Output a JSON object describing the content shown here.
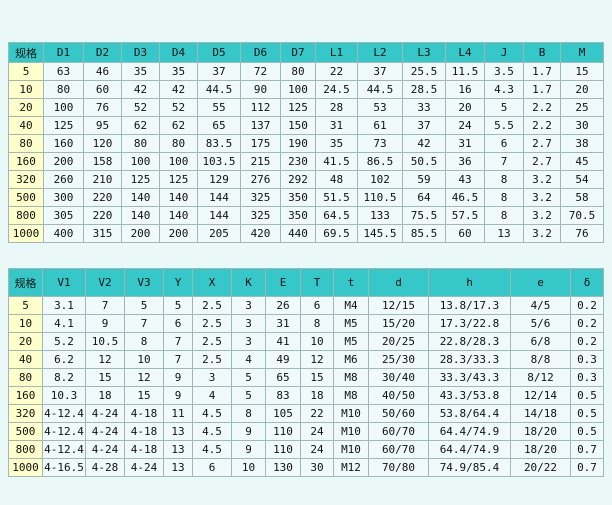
{
  "tables": [
    {
      "header": [
        "规格",
        "D1",
        "D2",
        "D3",
        "D4",
        "D5",
        "D6",
        "D7",
        "L1",
        "L2",
        "L3",
        "L4",
        "J",
        "B",
        "M"
      ],
      "rows": [
        [
          "5",
          "63",
          "46",
          "35",
          "35",
          "37",
          "72",
          "80",
          "22",
          "37",
          "25.5",
          "11.5",
          "3.5",
          "1.7",
          "15"
        ],
        [
          "10",
          "80",
          "60",
          "42",
          "42",
          "44.5",
          "90",
          "100",
          "24.5",
          "44.5",
          "28.5",
          "16",
          "4.3",
          "1.7",
          "20"
        ],
        [
          "20",
          "100",
          "76",
          "52",
          "52",
          "55",
          "112",
          "125",
          "28",
          "53",
          "33",
          "20",
          "5",
          "2.2",
          "25"
        ],
        [
          "40",
          "125",
          "95",
          "62",
          "62",
          "65",
          "137",
          "150",
          "31",
          "61",
          "37",
          "24",
          "5.5",
          "2.2",
          "30"
        ],
        [
          "80",
          "160",
          "120",
          "80",
          "80",
          "83.5",
          "175",
          "190",
          "35",
          "73",
          "42",
          "31",
          "6",
          "2.7",
          "38"
        ],
        [
          "160",
          "200",
          "158",
          "100",
          "100",
          "103.5",
          "215",
          "230",
          "41.5",
          "86.5",
          "50.5",
          "36",
          "7",
          "2.7",
          "45"
        ],
        [
          "320",
          "260",
          "210",
          "125",
          "125",
          "129",
          "276",
          "292",
          "48",
          "102",
          "59",
          "43",
          "8",
          "3.2",
          "54"
        ],
        [
          "500",
          "300",
          "220",
          "140",
          "140",
          "144",
          "325",
          "350",
          "51.5",
          "110.5",
          "64",
          "46.5",
          "8",
          "3.2",
          "58"
        ],
        [
          "800",
          "305",
          "220",
          "140",
          "140",
          "144",
          "325",
          "350",
          "64.5",
          "133",
          "75.5",
          "57.5",
          "8",
          "3.2",
          "70.5"
        ],
        [
          "1000",
          "400",
          "315",
          "200",
          "200",
          "205",
          "420",
          "440",
          "69.5",
          "145.5",
          "85.5",
          "60",
          "13",
          "3.2",
          "76"
        ]
      ]
    },
    {
      "header": [
        "规格",
        "V1",
        "V2",
        "V3",
        "Y",
        "X",
        "K",
        "E",
        "T",
        "t",
        "d",
        "h",
        "e",
        "δ"
      ],
      "rows": [
        [
          "5",
          "3.1",
          "7",
          "5",
          "5",
          "2.5",
          "3",
          "26",
          "6",
          "M4",
          "12/15",
          "13.8/17.3",
          "4/5",
          "0.2"
        ],
        [
          "10",
          "4.1",
          "9",
          "7",
          "6",
          "2.5",
          "3",
          "31",
          "8",
          "M5",
          "15/20",
          "17.3/22.8",
          "5/6",
          "0.2"
        ],
        [
          "20",
          "5.2",
          "10.5",
          "8",
          "7",
          "2.5",
          "3",
          "41",
          "10",
          "M5",
          "20/25",
          "22.8/28.3",
          "6/8",
          "0.2"
        ],
        [
          "40",
          "6.2",
          "12",
          "10",
          "7",
          "2.5",
          "4",
          "49",
          "12",
          "M6",
          "25/30",
          "28.3/33.3",
          "8/8",
          "0.3"
        ],
        [
          "80",
          "8.2",
          "15",
          "12",
          "9",
          "3",
          "5",
          "65",
          "15",
          "M8",
          "30/40",
          "33.3/43.3",
          "8/12",
          "0.3"
        ],
        [
          "160",
          "10.3",
          "18",
          "15",
          "9",
          "4",
          "5",
          "83",
          "18",
          "M8",
          "40/50",
          "43.3/53.8",
          "12/14",
          "0.5"
        ],
        [
          "320",
          "4-12.4",
          "4-24",
          "4-18",
          "11",
          "4.5",
          "8",
          "105",
          "22",
          "M10",
          "50/60",
          "53.8/64.4",
          "14/18",
          "0.5"
        ],
        [
          "500",
          "4-12.4",
          "4-24",
          "4-18",
          "13",
          "4.5",
          "9",
          "110",
          "24",
          "M10",
          "60/70",
          "64.4/74.9",
          "18/20",
          "0.5"
        ],
        [
          "800",
          "4-12.4",
          "4-24",
          "4-18",
          "13",
          "4.5",
          "9",
          "110",
          "24",
          "M10",
          "60/70",
          "64.4/74.9",
          "18/20",
          "0.7"
        ],
        [
          "1000",
          "4-16.5",
          "4-28",
          "4-24",
          "13",
          "6",
          "10",
          "130",
          "30",
          "M12",
          "70/80",
          "74.9/85.4",
          "20/22",
          "0.7"
        ]
      ]
    }
  ]
}
